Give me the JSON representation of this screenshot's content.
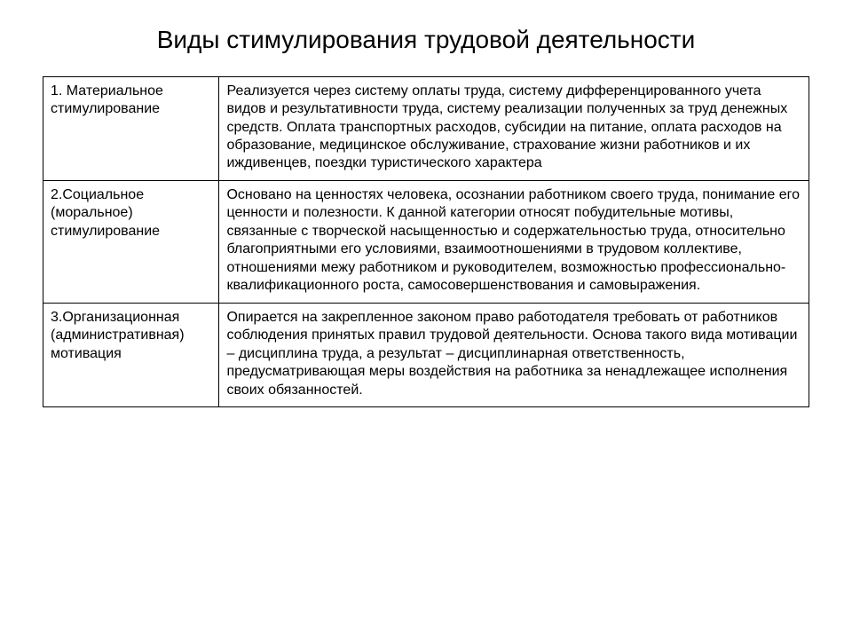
{
  "title": "Виды стимулирования трудовой деятельности",
  "table": {
    "columns": [
      "type",
      "description"
    ],
    "col_widths": [
      "23%",
      "77%"
    ],
    "border_color": "#000000",
    "background_color": "#ffffff",
    "font_size_pt": 16,
    "title_font_size_pt": 28,
    "rows": [
      {
        "type": "1. Материальное стимулирование",
        "description": "Реализуется через систему оплаты труда, систему дифференцированного учета видов  и результативности труда, систему реализации полученных за труд денежных средств. Оплата транспортных расходов, субсидии на питание, оплата расходов на образование, медицинское обслуживание, страхование жизни работников и их иждивенцев, поездки туристического характера"
      },
      {
        "type": "2.Социальное (моральное) стимулирование",
        "description": "Основано на ценностях человека, осознании работником своего труда, понимание его ценности и полезности. К данной категории относят побудительные мотивы, связанные с творческой насыщенностью и содержательностью труда, относительно благоприятными его условиями, взаимоотношениями в трудовом коллективе, отношениями межу работником и руководителем, возможностью профессионально-квалификационного роста, самосовершенствования и самовыражения."
      },
      {
        "type": "3.Организационная (административная) мотивация",
        "description": "Опирается на закрепленное законом право работодателя требовать от работников соблюдения принятых правил трудовой деятельности. Основа такого вида мотивации – дисциплина труда, а результат – дисциплинарная ответственность, предусматривающая меры воздействия на работника за ненадлежащее исполнения своих обязанностей."
      }
    ]
  }
}
